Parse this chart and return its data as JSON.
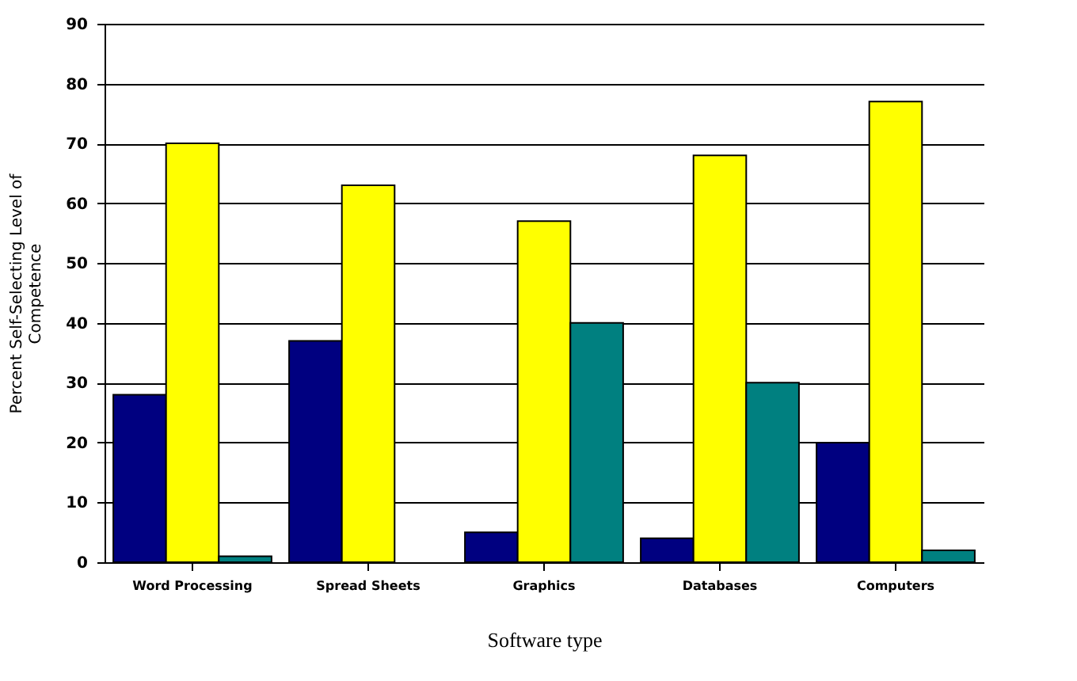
{
  "chart_data": {
    "type": "bar",
    "xlabel": "Software type",
    "ylabel": "Percent Self-Selecting Level of Competence",
    "categories": [
      "Word Processing",
      "Spread Sheets",
      "Graphics",
      "Databases",
      "Computers"
    ],
    "series": [
      {
        "color": "#000080",
        "values": [
          28,
          37,
          5,
          4,
          20
        ]
      },
      {
        "color": "#ffff00",
        "values": [
          70,
          63,
          57,
          68,
          77
        ]
      },
      {
        "color": "#008080",
        "values": [
          1,
          null,
          40,
          30,
          2
        ]
      }
    ],
    "ylim": [
      0,
      90
    ],
    "yticks": [
      0,
      10,
      20,
      30,
      40,
      50,
      60,
      70,
      80,
      90
    ],
    "grid": "y",
    "legend": false
  }
}
